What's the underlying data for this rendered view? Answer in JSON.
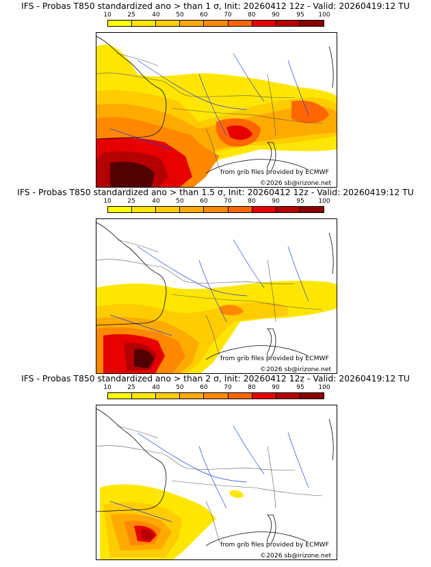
{
  "colorbar": {
    "ticks": [
      "10",
      "25",
      "40",
      "50",
      "60",
      "70",
      "80",
      "90",
      "95",
      "100"
    ],
    "colors": [
      "#ffff00",
      "#ffe600",
      "#ffcc00",
      "#ffaa00",
      "#ff8800",
      "#ff6600",
      "#e60000",
      "#b40000",
      "#8c0000",
      "#500000"
    ]
  },
  "panels": [
    {
      "title": "IFS - Probas T850  standardized ano > than 1 σ, Init: 20260412 12z - Valid: 20260419:12 TU",
      "provider_credit": "from grib files provided by ECMWF",
      "copyright": "©2026 sb@irizone.net"
    },
    {
      "title": "IFS - Probas T850  standardized ano > than 1.5 σ, Init: 20260412 12z - Valid: 20260419:12 TU",
      "provider_credit": "from grib files provided by ECMWF",
      "copyright": "©2026 sb@irizone.net"
    },
    {
      "title": "IFS - Probas T850  standardized ano > than 2 σ, Init: 20260412 12z - Valid: 20260419:12 TU",
      "provider_credit": "from grib files provided by ECMWF",
      "copyright": "©2026 sb@irizone.net"
    }
  ]
}
